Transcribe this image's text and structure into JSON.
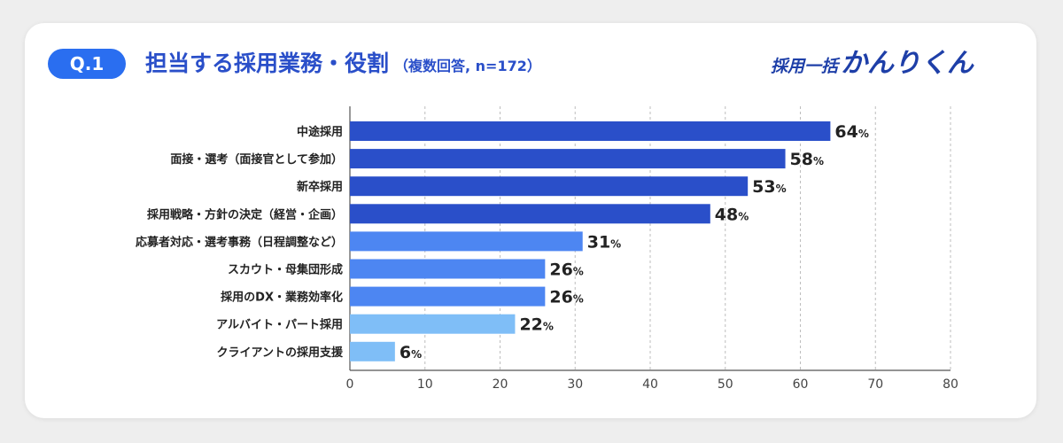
{
  "header": {
    "badge": "Q.1",
    "title": "担当する採用業務・役割",
    "subtitle": "（複数回答, n=172）"
  },
  "brand": {
    "part1": "採用一括",
    "part2": "かんりくん"
  },
  "colors": {
    "badge": "#2a6ef0",
    "title": "#2a4fc9",
    "brand": "#1e3fa8",
    "bar_dark": "#2a4fc9",
    "bar_mid": "#4d86f2",
    "bar_light": "#7fbef7"
  },
  "chart_data": {
    "type": "bar",
    "orientation": "horizontal",
    "categories": [
      "中途採用",
      "面接・選考（面接官として参加）",
      "新卒採用",
      "採用戦略・方針の決定（経営・企画）",
      "応募者対応・選考事務（日程調整など）",
      "スカウト・母集団形成",
      "採用のDX・業務効率化",
      "アルバイト・パート採用",
      "クライアントの採用支援"
    ],
    "values": [
      64,
      58,
      53,
      48,
      31,
      26,
      26,
      22,
      6
    ],
    "value_suffix": "%",
    "bar_color_groups": [
      "dark",
      "dark",
      "dark",
      "dark",
      "mid",
      "mid",
      "mid",
      "light",
      "light"
    ],
    "xlim": [
      0,
      80
    ],
    "xticks": [
      "0",
      "10",
      "20",
      "30",
      "40",
      "50",
      "60",
      "70",
      "80"
    ],
    "grid": "vertical dashed"
  }
}
